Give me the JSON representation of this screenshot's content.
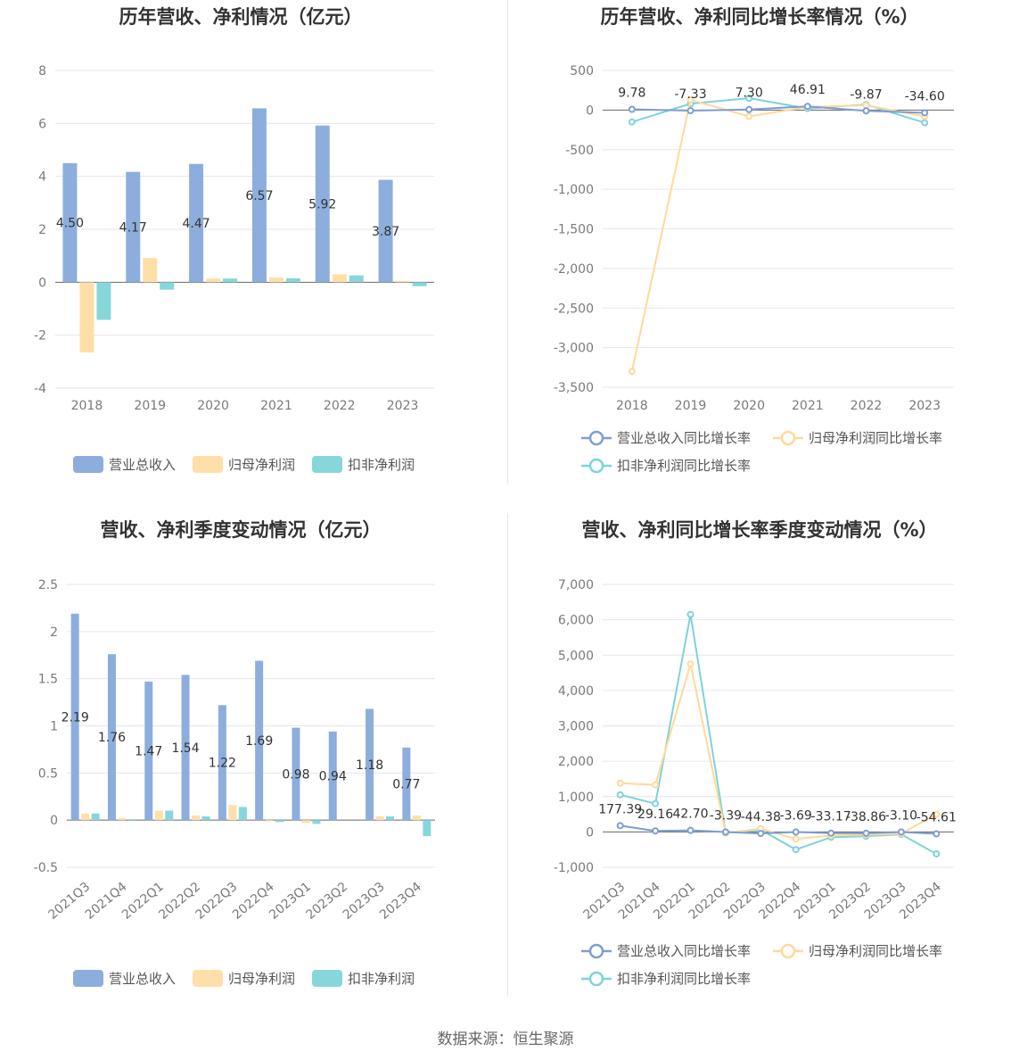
{
  "source_text": "数据来源：恒生聚源",
  "colors": {
    "revenue": "#8DAEDC",
    "net_profit": "#FFDFA8",
    "deducted_profit": "#87D6DA",
    "revenue_line": "#7E9DD2",
    "net_line": "#FFD999",
    "deducted_line": "#7DD3D8",
    "grid": "#E3E6EE"
  },
  "chart_data": [
    {
      "id": "annual_amount",
      "type": "bar",
      "title": "历年营收、净利情况（亿元）",
      "categories": [
        "2018",
        "2019",
        "2020",
        "2021",
        "2022",
        "2023"
      ],
      "ylim": [
        -4,
        8
      ],
      "yticks": [
        8,
        6,
        4,
        2,
        0,
        -2,
        -4
      ],
      "series": [
        {
          "name": "营业总收入",
          "values": [
            4.5,
            4.17,
            4.47,
            6.57,
            5.92,
            3.87
          ],
          "labels": [
            "4.50",
            "4.17",
            "4.47",
            "6.57",
            "5.92",
            "3.87"
          ]
        },
        {
          "name": "归母净利润",
          "values": [
            -2.65,
            0.92,
            0.14,
            0.18,
            0.3,
            0.05
          ]
        },
        {
          "name": "扣非净利润",
          "values": [
            -1.42,
            -0.28,
            0.14,
            0.15,
            0.26,
            -0.15
          ]
        }
      ],
      "legend": "bottom",
      "grid": true
    },
    {
      "id": "annual_growth",
      "type": "line",
      "title": "历年营收、净利同比增长率情况（%）",
      "categories": [
        "2018",
        "2019",
        "2020",
        "2021",
        "2022",
        "2023"
      ],
      "ylim": [
        -3500,
        500
      ],
      "yticks": [
        500,
        0,
        -500,
        -1000,
        -1500,
        -2000,
        -2500,
        -3000,
        -3500
      ],
      "ytick_labels": [
        "500",
        "0",
        "-500",
        "-1,000",
        "-1,500",
        "-2,000",
        "-2,500",
        "-3,000",
        "-3,500"
      ],
      "series": [
        {
          "name": "营业总收入同比增长率",
          "values": [
            9.78,
            -7.33,
            7.3,
            46.91,
            -9.87,
            -34.6
          ],
          "labels": [
            "9.78",
            "-7.33",
            "7.30",
            "46.91",
            "-9.87",
            "-34.60"
          ]
        },
        {
          "name": "归母净利润同比增长率",
          "values": [
            -3300,
            130,
            -80,
            40,
            60,
            -80
          ]
        },
        {
          "name": "扣非净利润同比增长率",
          "values": [
            -150,
            80,
            150,
            20,
            70,
            -160
          ]
        }
      ],
      "legend": "bottom",
      "grid": true
    },
    {
      "id": "quarterly_amount",
      "type": "bar",
      "title": "营收、净利季度变动情况（亿元）",
      "categories": [
        "2021Q3",
        "2021Q4",
        "2022Q1",
        "2022Q2",
        "2022Q3",
        "2022Q4",
        "2023Q1",
        "2023Q2",
        "2023Q3",
        "2023Q4"
      ],
      "ylim": [
        -0.5,
        2.5
      ],
      "yticks": [
        2.5,
        2,
        1.5,
        1,
        0.5,
        0,
        -0.5
      ],
      "series": [
        {
          "name": "营业总收入",
          "values": [
            2.19,
            1.76,
            1.47,
            1.54,
            1.22,
            1.69,
            0.98,
            0.94,
            1.18,
            0.77
          ],
          "labels": [
            "2.19",
            "1.76",
            "1.47",
            "1.54",
            "1.22",
            "1.69",
            "0.98",
            "0.94",
            "1.18",
            "0.77"
          ]
        },
        {
          "name": "归母净利润",
          "values": [
            0.07,
            0.02,
            0.1,
            0.05,
            0.16,
            -0.01,
            -0.03,
            0.0,
            0.04,
            0.05
          ]
        },
        {
          "name": "扣非净利润",
          "values": [
            0.07,
            0.01,
            0.1,
            0.04,
            0.14,
            -0.02,
            -0.04,
            0.0,
            0.04,
            -0.17
          ]
        }
      ],
      "legend": "bottom",
      "grid": true
    },
    {
      "id": "quarterly_growth",
      "type": "line",
      "title": "营收、净利同比增长率季度变动情况（%）",
      "categories": [
        "2021Q3",
        "2021Q4",
        "2022Q1",
        "2022Q2",
        "2022Q3",
        "2022Q4",
        "2023Q1",
        "2023Q2",
        "2023Q3",
        "2023Q4"
      ],
      "ylim": [
        -1000,
        7000
      ],
      "yticks": [
        7000,
        6000,
        5000,
        4000,
        3000,
        2000,
        1000,
        0,
        -1000
      ],
      "ytick_labels": [
        "7,000",
        "6,000",
        "5,000",
        "4,000",
        "3,000",
        "2,000",
        "1,000",
        "0",
        "-1,000"
      ],
      "series": [
        {
          "name": "营业总收入同比增长率",
          "values": [
            177.39,
            29.16,
            42.7,
            -3.39,
            -44.38,
            -3.69,
            -33.17,
            -38.86,
            -3.1,
            -54.61
          ],
          "labels": [
            "177.39",
            "29.16",
            "42.70",
            "-3.39",
            "-44.38",
            "-3.69",
            "-33.17",
            "-38.86",
            "-3.10",
            "-54.61"
          ]
        },
        {
          "name": "归母净利润同比增长率",
          "values": [
            1380,
            1330,
            4750,
            -30,
            90,
            -200,
            -100,
            -80,
            -50,
            500
          ]
        },
        {
          "name": "扣非净利润同比增长率",
          "values": [
            1050,
            800,
            6150,
            -30,
            60,
            -500,
            -150,
            -120,
            -70,
            -620
          ]
        }
      ],
      "legend": "bottom",
      "grid": true
    }
  ]
}
